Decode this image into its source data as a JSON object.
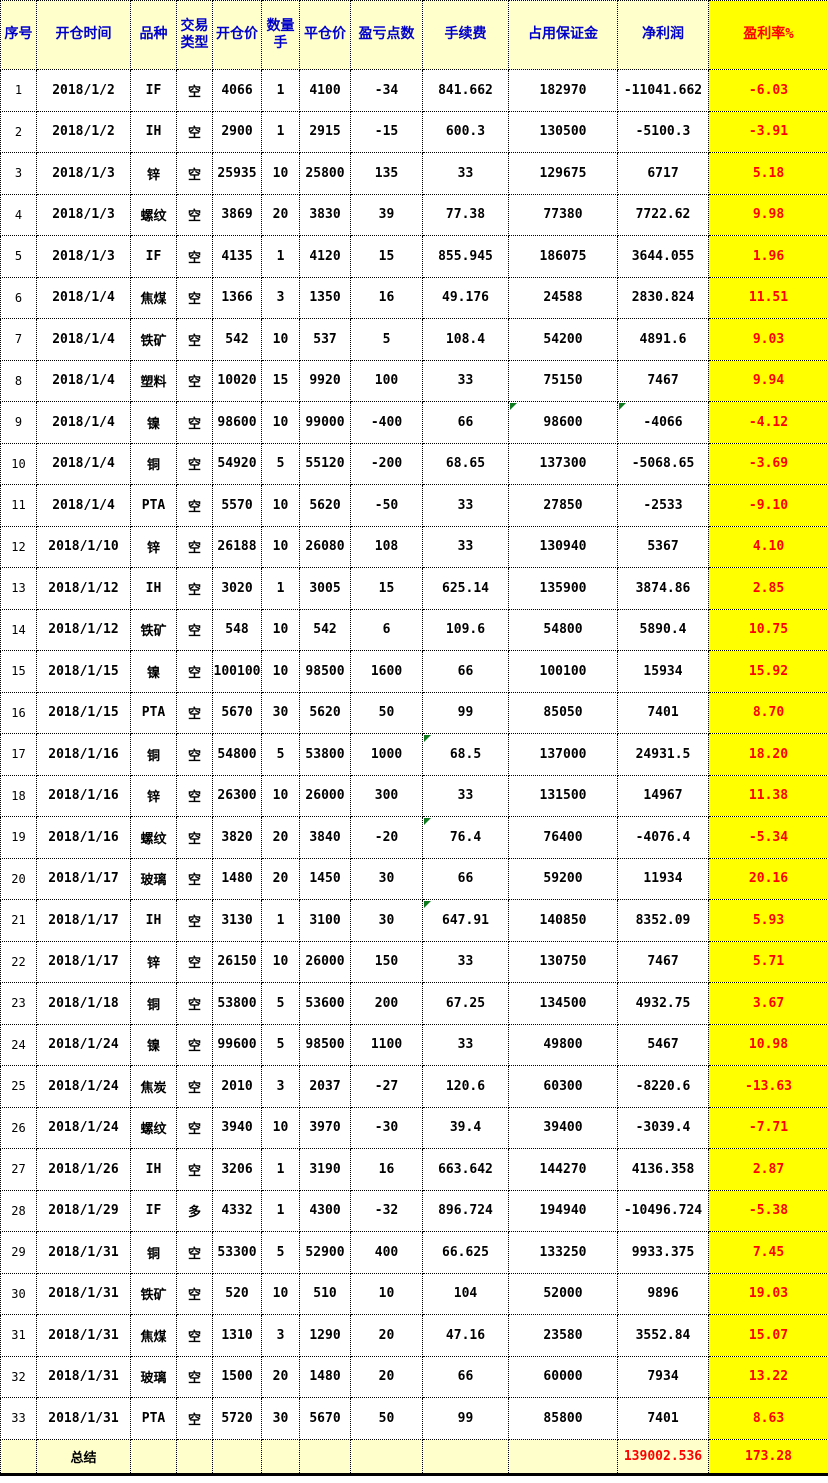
{
  "table": {
    "columns": [
      {
        "key": "index",
        "label": "序号"
      },
      {
        "key": "open-time",
        "label": "开仓时间"
      },
      {
        "key": "symbol",
        "label": "品种"
      },
      {
        "key": "trade-type",
        "label": "交易类型"
      },
      {
        "key": "open-price",
        "label": "开仓价"
      },
      {
        "key": "quantity-lots",
        "label": "数量手"
      },
      {
        "key": "close-price",
        "label": "平仓价"
      },
      {
        "key": "pnl-points",
        "label": "盈亏点数"
      },
      {
        "key": "fee",
        "label": "手续费"
      },
      {
        "key": "margin-used",
        "label": "占用保证金"
      },
      {
        "key": "net-profit",
        "label": "净利润"
      },
      {
        "key": "profit-rate",
        "label": "盈利率%"
      }
    ],
    "rows": [
      [
        "1",
        "2018/1/2",
        "IF",
        "空",
        "4066",
        "1",
        "4100",
        "-34",
        "841.662",
        "182970",
        "-11041.662",
        "-6.03"
      ],
      [
        "2",
        "2018/1/2",
        "IH",
        "空",
        "2900",
        "1",
        "2915",
        "-15",
        "600.3",
        "130500",
        "-5100.3",
        "-3.91"
      ],
      [
        "3",
        "2018/1/3",
        "锌",
        "空",
        "25935",
        "10",
        "25800",
        "135",
        "33",
        "129675",
        "6717",
        "5.18"
      ],
      [
        "4",
        "2018/1/3",
        "螺纹",
        "空",
        "3869",
        "20",
        "3830",
        "39",
        "77.38",
        "77380",
        "7722.62",
        "9.98"
      ],
      [
        "5",
        "2018/1/3",
        "IF",
        "空",
        "4135",
        "1",
        "4120",
        "15",
        "855.945",
        "186075",
        "3644.055",
        "1.96"
      ],
      [
        "6",
        "2018/1/4",
        "焦煤",
        "空",
        "1366",
        "3",
        "1350",
        "16",
        "49.176",
        "24588",
        "2830.824",
        "11.51"
      ],
      [
        "7",
        "2018/1/4",
        "铁矿",
        "空",
        "542",
        "10",
        "537",
        "5",
        "108.4",
        "54200",
        "4891.6",
        "9.03"
      ],
      [
        "8",
        "2018/1/4",
        "塑料",
        "空",
        "10020",
        "15",
        "9920",
        "100",
        "33",
        "75150",
        "7467",
        "9.94"
      ],
      [
        "9",
        "2018/1/4",
        "镍",
        "空",
        "98600",
        "10",
        "99000",
        "-400",
        "66",
        "98600",
        "-4066",
        "-4.12"
      ],
      [
        "10",
        "2018/1/4",
        "铜",
        "空",
        "54920",
        "5",
        "55120",
        "-200",
        "68.65",
        "137300",
        "-5068.65",
        "-3.69"
      ],
      [
        "11",
        "2018/1/4",
        "PTA",
        "空",
        "5570",
        "10",
        "5620",
        "-50",
        "33",
        "27850",
        "-2533",
        "-9.10"
      ],
      [
        "12",
        "2018/1/10",
        "锌",
        "空",
        "26188",
        "10",
        "26080",
        "108",
        "33",
        "130940",
        "5367",
        "4.10"
      ],
      [
        "13",
        "2018/1/12",
        "IH",
        "空",
        "3020",
        "1",
        "3005",
        "15",
        "625.14",
        "135900",
        "3874.86",
        "2.85"
      ],
      [
        "14",
        "2018/1/12",
        "铁矿",
        "空",
        "548",
        "10",
        "542",
        "6",
        "109.6",
        "54800",
        "5890.4",
        "10.75"
      ],
      [
        "15",
        "2018/1/15",
        "镍",
        "空",
        "100100",
        "10",
        "98500",
        "1600",
        "66",
        "100100",
        "15934",
        "15.92"
      ],
      [
        "16",
        "2018/1/15",
        "PTA",
        "空",
        "5670",
        "30",
        "5620",
        "50",
        "99",
        "85050",
        "7401",
        "8.70"
      ],
      [
        "17",
        "2018/1/16",
        "铜",
        "空",
        "54800",
        "5",
        "53800",
        "1000",
        "68.5",
        "137000",
        "24931.5",
        "18.20"
      ],
      [
        "18",
        "2018/1/16",
        "锌",
        "空",
        "26300",
        "10",
        "26000",
        "300",
        "33",
        "131500",
        "14967",
        "11.38"
      ],
      [
        "19",
        "2018/1/16",
        "螺纹",
        "空",
        "3820",
        "20",
        "3840",
        "-20",
        "76.4",
        "76400",
        "-4076.4",
        "-5.34"
      ],
      [
        "20",
        "2018/1/17",
        "玻璃",
        "空",
        "1480",
        "20",
        "1450",
        "30",
        "66",
        "59200",
        "11934",
        "20.16"
      ],
      [
        "21",
        "2018/1/17",
        "IH",
        "空",
        "3130",
        "1",
        "3100",
        "30",
        "647.91",
        "140850",
        "8352.09",
        "5.93"
      ],
      [
        "22",
        "2018/1/17",
        "锌",
        "空",
        "26150",
        "10",
        "26000",
        "150",
        "33",
        "130750",
        "7467",
        "5.71"
      ],
      [
        "23",
        "2018/1/18",
        "铜",
        "空",
        "53800",
        "5",
        "53600",
        "200",
        "67.25",
        "134500",
        "4932.75",
        "3.67"
      ],
      [
        "24",
        "2018/1/24",
        "镍",
        "空",
        "99600",
        "5",
        "98500",
        "1100",
        "33",
        "49800",
        "5467",
        "10.98"
      ],
      [
        "25",
        "2018/1/24",
        "焦炭",
        "空",
        "2010",
        "3",
        "2037",
        "-27",
        "120.6",
        "60300",
        "-8220.6",
        "-13.63"
      ],
      [
        "26",
        "2018/1/24",
        "螺纹",
        "空",
        "3940",
        "10",
        "3970",
        "-30",
        "39.4",
        "39400",
        "-3039.4",
        "-7.71"
      ],
      [
        "27",
        "2018/1/26",
        "IH",
        "空",
        "3206",
        "1",
        "3190",
        "16",
        "663.642",
        "144270",
        "4136.358",
        "2.87"
      ],
      [
        "28",
        "2018/1/29",
        "IF",
        "多",
        "4332",
        "1",
        "4300",
        "-32",
        "896.724",
        "194940",
        "-10496.724",
        "-5.38"
      ],
      [
        "29",
        "2018/1/31",
        "铜",
        "空",
        "53300",
        "5",
        "52900",
        "400",
        "66.625",
        "133250",
        "9933.375",
        "7.45"
      ],
      [
        "30",
        "2018/1/31",
        "铁矿",
        "空",
        "520",
        "10",
        "510",
        "10",
        "104",
        "52000",
        "9896",
        "19.03"
      ],
      [
        "31",
        "2018/1/31",
        "焦煤",
        "空",
        "1310",
        "3",
        "1290",
        "20",
        "47.16",
        "23580",
        "3552.84",
        "15.07"
      ],
      [
        "32",
        "2018/1/31",
        "玻璃",
        "空",
        "1500",
        "20",
        "1480",
        "20",
        "66",
        "60000",
        "7934",
        "13.22"
      ],
      [
        "33",
        "2018/1/31",
        "PTA",
        "空",
        "5720",
        "30",
        "5670",
        "50",
        "99",
        "85800",
        "7401",
        "8.63"
      ]
    ],
    "comment_flags": [
      [
        8,
        9
      ],
      [
        8,
        10
      ],
      [
        16,
        8
      ],
      [
        18,
        8
      ],
      [
        20,
        8
      ]
    ],
    "summary": {
      "label": "总结",
      "net_profit": "139002.536",
      "profit_rate": "173.28"
    }
  },
  "colors": {
    "header_bg": "#FFFFCC",
    "header_text": "#0000CC",
    "rate_column_bg": "#FFFF00",
    "rate_text": "#FF0000",
    "cell_bg": "#FFFFFF",
    "cell_text": "#000000",
    "summary_bg": "#FFFFCC",
    "summary_value_text": "#FF0000",
    "comment_flag": "#0E7A1E"
  }
}
